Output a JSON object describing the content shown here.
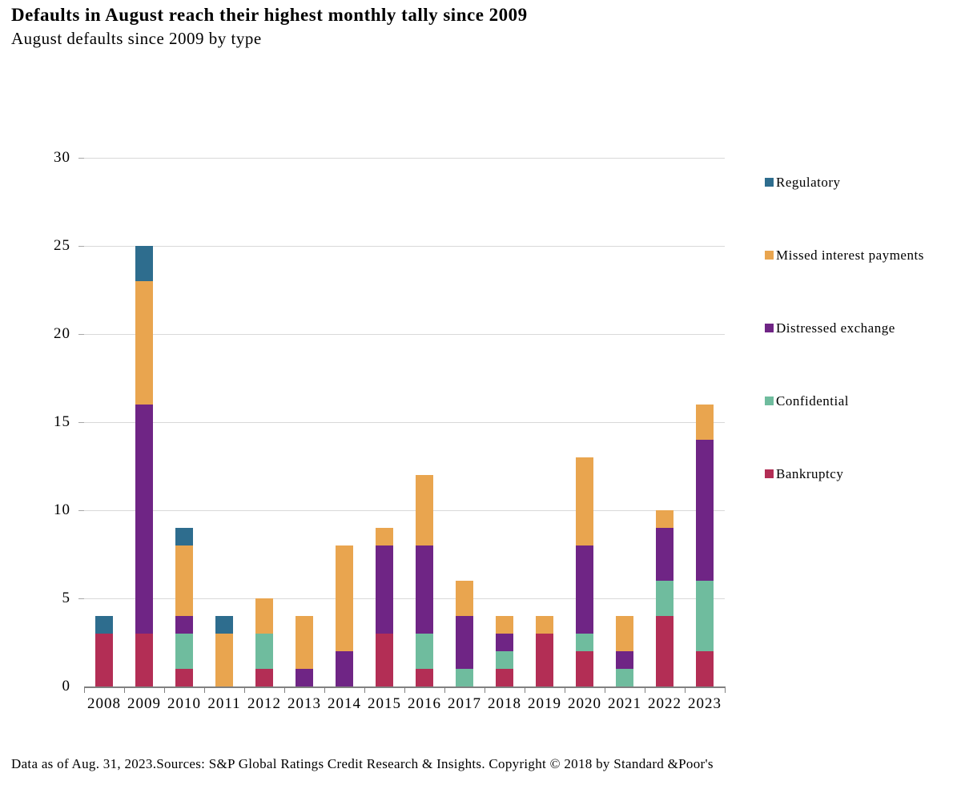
{
  "header": {
    "title": "Defaults in August reach their highest monthly tally since 2009",
    "subtitle": "August defaults since 2009 by type"
  },
  "footer": {
    "text": "Data as of Aug. 31, 2023.Sources: S&P Global Ratings Credit Research & Insights. Copyright © 2018 by Standard &Poor's"
  },
  "colors": {
    "background": "#ffffff",
    "gridline": "#d9d9d9",
    "axis": "#808080",
    "text": "#000000"
  },
  "chart_data": {
    "type": "bar",
    "stacked": true,
    "title": "Defaults in August reach their highest monthly tally since 2009",
    "subtitle": "August defaults since 2009 by type",
    "xlabel": "",
    "ylabel": "",
    "ylim": [
      0,
      30
    ],
    "yticks": [
      0,
      5,
      10,
      15,
      20,
      25,
      30
    ],
    "grid": true,
    "legend_position": "right",
    "categories": [
      "2008",
      "2009",
      "2010",
      "2011",
      "2012",
      "2013",
      "2014",
      "2015",
      "2016",
      "2017",
      "2018",
      "2019",
      "2020",
      "2021",
      "2022",
      "2023"
    ],
    "series": [
      {
        "name": "Bankruptcy",
        "color": "#b32e55",
        "values": [
          3,
          3,
          1,
          0,
          1,
          0,
          0,
          3,
          1,
          0,
          1,
          3,
          2,
          0,
          4,
          2
        ]
      },
      {
        "name": "Confidential",
        "color": "#6fbc9e",
        "values": [
          0,
          0,
          2,
          0,
          2,
          0,
          0,
          0,
          2,
          1,
          1,
          0,
          1,
          1,
          2,
          4
        ]
      },
      {
        "name": "Distressed exchange",
        "color": "#6f2585",
        "values": [
          0,
          13,
          1,
          0,
          0,
          1,
          2,
          5,
          5,
          3,
          1,
          0,
          5,
          1,
          3,
          8
        ]
      },
      {
        "name": "Missed interest payments",
        "color": "#e9a54f",
        "values": [
          0,
          7,
          4,
          3,
          2,
          3,
          6,
          1,
          4,
          2,
          1,
          1,
          5,
          2,
          1,
          2
        ]
      },
      {
        "name": "Regulatory",
        "color": "#2e6d8e",
        "values": [
          1,
          2,
          1,
          1,
          0,
          0,
          0,
          0,
          0,
          0,
          0,
          0,
          0,
          0,
          0,
          0
        ]
      }
    ],
    "legend_order_top_to_bottom": [
      "Regulatory",
      "Missed interest payments",
      "Distressed exchange",
      "Confidential",
      "Bankruptcy"
    ]
  }
}
